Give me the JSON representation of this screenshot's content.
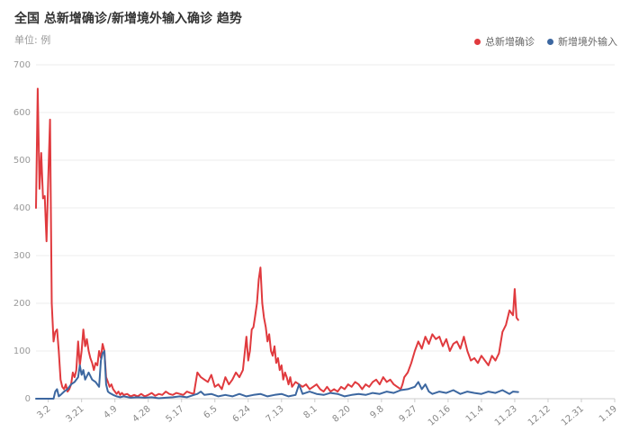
{
  "header": {
    "title": "全国 总新增确诊/新增境外输入确诊 趋势",
    "unit": "单位: 例"
  },
  "legend": {
    "items": [
      {
        "label": "总新增确诊",
        "color": "#e03a3e"
      },
      {
        "label": "新增境外输入",
        "color": "#3c67a0"
      }
    ]
  },
  "chart_data": {
    "type": "line",
    "title": "全国 总新增确诊/新增境外输入确诊 趋势",
    "ylabel": "单位: 例",
    "ylim": [
      0,
      700
    ],
    "yticks": [
      0,
      100,
      200,
      300,
      400,
      500,
      600,
      700
    ],
    "xlim": [
      0,
      330
    ],
    "xtick_labels": [
      "3.2",
      "3.21",
      "4.9",
      "4.28",
      "5.17",
      "6.5",
      "6.24",
      "7.13",
      "8.1",
      "8.20",
      "9.8",
      "9.27",
      "10.16",
      "11.4",
      "11.23",
      "12.12",
      "12.31",
      "1.19"
    ],
    "xtick_positions": [
      7,
      26,
      45,
      64,
      83,
      102,
      121,
      140,
      159,
      178,
      197,
      216,
      235,
      254,
      273,
      292,
      311,
      330
    ],
    "grid": true,
    "legend_position": "top-right",
    "series": [
      {
        "name": "总新增确诊",
        "color": "#e03a3e",
        "points": [
          [
            0,
            400
          ],
          [
            1,
            650
          ],
          [
            2,
            440
          ],
          [
            3,
            515
          ],
          [
            4,
            420
          ],
          [
            5,
            425
          ],
          [
            6,
            330
          ],
          [
            7,
            460
          ],
          [
            8,
            585
          ],
          [
            9,
            200
          ],
          [
            10,
            120
          ],
          [
            11,
            140
          ],
          [
            12,
            145
          ],
          [
            13,
            100
          ],
          [
            14,
            40
          ],
          [
            15,
            25
          ],
          [
            16,
            20
          ],
          [
            17,
            30
          ],
          [
            18,
            15
          ],
          [
            19,
            20
          ],
          [
            20,
            30
          ],
          [
            21,
            55
          ],
          [
            22,
            45
          ],
          [
            23,
            60
          ],
          [
            24,
            120
          ],
          [
            25,
            70
          ],
          [
            26,
            100
          ],
          [
            27,
            145
          ],
          [
            28,
            110
          ],
          [
            29,
            125
          ],
          [
            30,
            100
          ],
          [
            31,
            85
          ],
          [
            32,
            75
          ],
          [
            33,
            60
          ],
          [
            34,
            75
          ],
          [
            35,
            70
          ],
          [
            36,
            100
          ],
          [
            37,
            85
          ],
          [
            38,
            115
          ],
          [
            39,
            100
          ],
          [
            40,
            45
          ],
          [
            41,
            35
          ],
          [
            42,
            25
          ],
          [
            43,
            30
          ],
          [
            44,
            20
          ],
          [
            45,
            15
          ],
          [
            46,
            10
          ],
          [
            47,
            15
          ],
          [
            48,
            8
          ],
          [
            49,
            12
          ],
          [
            50,
            8
          ],
          [
            52,
            10
          ],
          [
            54,
            5
          ],
          [
            56,
            8
          ],
          [
            58,
            5
          ],
          [
            60,
            10
          ],
          [
            62,
            5
          ],
          [
            64,
            8
          ],
          [
            66,
            12
          ],
          [
            68,
            6
          ],
          [
            70,
            10
          ],
          [
            72,
            8
          ],
          [
            74,
            15
          ],
          [
            76,
            10
          ],
          [
            78,
            8
          ],
          [
            80,
            12
          ],
          [
            82,
            10
          ],
          [
            84,
            8
          ],
          [
            86,
            15
          ],
          [
            88,
            12
          ],
          [
            90,
            10
          ],
          [
            92,
            55
          ],
          [
            94,
            45
          ],
          [
            96,
            40
          ],
          [
            98,
            35
          ],
          [
            100,
            50
          ],
          [
            102,
            25
          ],
          [
            104,
            30
          ],
          [
            106,
            20
          ],
          [
            108,
            45
          ],
          [
            110,
            30
          ],
          [
            112,
            40
          ],
          [
            114,
            55
          ],
          [
            116,
            45
          ],
          [
            118,
            60
          ],
          [
            120,
            130
          ],
          [
            121,
            80
          ],
          [
            122,
            100
          ],
          [
            123,
            145
          ],
          [
            124,
            150
          ],
          [
            125,
            175
          ],
          [
            126,
            200
          ],
          [
            127,
            250
          ],
          [
            128,
            275
          ],
          [
            129,
            200
          ],
          [
            130,
            170
          ],
          [
            131,
            150
          ],
          [
            132,
            120
          ],
          [
            133,
            135
          ],
          [
            134,
            100
          ],
          [
            135,
            90
          ],
          [
            136,
            110
          ],
          [
            137,
            75
          ],
          [
            138,
            85
          ],
          [
            139,
            60
          ],
          [
            140,
            70
          ],
          [
            141,
            40
          ],
          [
            142,
            55
          ],
          [
            143,
            45
          ],
          [
            144,
            30
          ],
          [
            145,
            45
          ],
          [
            146,
            25
          ],
          [
            148,
            35
          ],
          [
            150,
            30
          ],
          [
            152,
            25
          ],
          [
            154,
            30
          ],
          [
            156,
            20
          ],
          [
            158,
            25
          ],
          [
            160,
            30
          ],
          [
            162,
            20
          ],
          [
            164,
            15
          ],
          [
            166,
            25
          ],
          [
            168,
            15
          ],
          [
            170,
            20
          ],
          [
            172,
            15
          ],
          [
            174,
            25
          ],
          [
            176,
            20
          ],
          [
            178,
            30
          ],
          [
            180,
            25
          ],
          [
            182,
            35
          ],
          [
            184,
            30
          ],
          [
            186,
            20
          ],
          [
            188,
            30
          ],
          [
            190,
            25
          ],
          [
            192,
            35
          ],
          [
            194,
            40
          ],
          [
            196,
            30
          ],
          [
            198,
            45
          ],
          [
            200,
            35
          ],
          [
            202,
            40
          ],
          [
            204,
            30
          ],
          [
            206,
            25
          ],
          [
            208,
            20
          ],
          [
            209,
            30
          ],
          [
            210,
            45
          ],
          [
            212,
            55
          ],
          [
            214,
            75
          ],
          [
            216,
            100
          ],
          [
            218,
            120
          ],
          [
            220,
            105
          ],
          [
            222,
            130
          ],
          [
            224,
            115
          ],
          [
            226,
            135
          ],
          [
            228,
            125
          ],
          [
            230,
            130
          ],
          [
            232,
            110
          ],
          [
            234,
            125
          ],
          [
            236,
            100
          ],
          [
            238,
            115
          ],
          [
            240,
            120
          ],
          [
            242,
            105
          ],
          [
            244,
            130
          ],
          [
            246,
            100
          ],
          [
            248,
            80
          ],
          [
            250,
            85
          ],
          [
            252,
            75
          ],
          [
            254,
            90
          ],
          [
            256,
            80
          ],
          [
            258,
            70
          ],
          [
            260,
            90
          ],
          [
            262,
            80
          ],
          [
            264,
            95
          ],
          [
            266,
            140
          ],
          [
            268,
            155
          ],
          [
            270,
            185
          ],
          [
            272,
            175
          ],
          [
            273,
            230
          ],
          [
            274,
            170
          ],
          [
            275,
            165
          ]
        ]
      },
      {
        "name": "新增境外输入",
        "color": "#3c67a0",
        "points": [
          [
            0,
            0
          ],
          [
            4,
            0
          ],
          [
            8,
            0
          ],
          [
            10,
            0
          ],
          [
            11,
            15
          ],
          [
            12,
            20
          ],
          [
            13,
            5
          ],
          [
            14,
            8
          ],
          [
            16,
            15
          ],
          [
            18,
            20
          ],
          [
            20,
            30
          ],
          [
            22,
            35
          ],
          [
            24,
            45
          ],
          [
            25,
            70
          ],
          [
            26,
            50
          ],
          [
            27,
            60
          ],
          [
            28,
            40
          ],
          [
            30,
            55
          ],
          [
            32,
            40
          ],
          [
            34,
            35
          ],
          [
            36,
            25
          ],
          [
            37,
            80
          ],
          [
            38,
            95
          ],
          [
            39,
            100
          ],
          [
            40,
            30
          ],
          [
            41,
            15
          ],
          [
            42,
            12
          ],
          [
            44,
            8
          ],
          [
            46,
            5
          ],
          [
            48,
            3
          ],
          [
            50,
            5
          ],
          [
            54,
            2
          ],
          [
            58,
            3
          ],
          [
            62,
            2
          ],
          [
            66,
            3
          ],
          [
            70,
            1
          ],
          [
            74,
            2
          ],
          [
            78,
            3
          ],
          [
            82,
            5
          ],
          [
            86,
            3
          ],
          [
            90,
            8
          ],
          [
            92,
            10
          ],
          [
            94,
            15
          ],
          [
            96,
            8
          ],
          [
            100,
            10
          ],
          [
            104,
            5
          ],
          [
            108,
            8
          ],
          [
            112,
            5
          ],
          [
            116,
            10
          ],
          [
            120,
            5
          ],
          [
            124,
            8
          ],
          [
            128,
            10
          ],
          [
            132,
            5
          ],
          [
            136,
            8
          ],
          [
            140,
            10
          ],
          [
            144,
            5
          ],
          [
            148,
            8
          ],
          [
            150,
            30
          ],
          [
            152,
            10
          ],
          [
            156,
            15
          ],
          [
            160,
            10
          ],
          [
            164,
            8
          ],
          [
            168,
            12
          ],
          [
            172,
            10
          ],
          [
            176,
            5
          ],
          [
            180,
            8
          ],
          [
            184,
            10
          ],
          [
            188,
            8
          ],
          [
            192,
            12
          ],
          [
            196,
            10
          ],
          [
            200,
            15
          ],
          [
            204,
            12
          ],
          [
            208,
            18
          ],
          [
            212,
            20
          ],
          [
            216,
            25
          ],
          [
            218,
            35
          ],
          [
            220,
            20
          ],
          [
            222,
            30
          ],
          [
            224,
            15
          ],
          [
            226,
            10
          ],
          [
            230,
            15
          ],
          [
            234,
            12
          ],
          [
            238,
            18
          ],
          [
            242,
            10
          ],
          [
            246,
            15
          ],
          [
            250,
            12
          ],
          [
            254,
            10
          ],
          [
            258,
            15
          ],
          [
            262,
            12
          ],
          [
            266,
            18
          ],
          [
            270,
            10
          ],
          [
            272,
            15
          ],
          [
            275,
            14
          ]
        ]
      }
    ]
  }
}
